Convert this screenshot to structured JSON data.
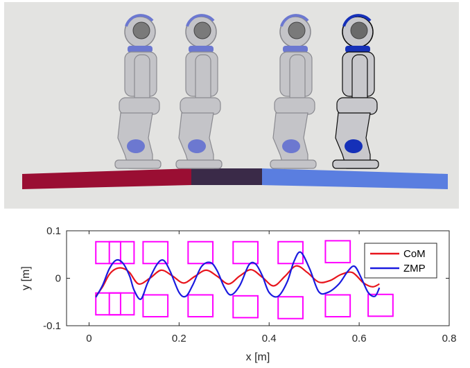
{
  "colors": {
    "com": "#e8141c",
    "zmp": "#1a1adf",
    "footprints": "#ff00ff",
    "scene_background": "#e3e3e1",
    "floor_segments": [
      "#9a0e33",
      "#3a2a48",
      "#5a7ee0"
    ],
    "robot_body": "#c4c4c8",
    "robot_accent": "#6c78d0",
    "robot_highlight_accent": "#1530b8"
  },
  "scene": {
    "icon": "humanoid-robot-icon",
    "robot_count": 4
  },
  "chart_data": {
    "type": "line",
    "xlabel": "x [m]",
    "ylabel": "y [m]",
    "xlim": [
      -0.05,
      0.8
    ],
    "ylim": [
      -0.1,
      0.1
    ],
    "xticks": [
      0,
      0.2,
      0.4,
      0.6,
      0.8
    ],
    "xtick_labels": [
      "0",
      "0.2",
      "0.4",
      "0.6",
      "0.8"
    ],
    "yticks": [
      -0.1,
      0,
      0.1
    ],
    "ytick_labels": [
      "-0.1",
      "0",
      "0.1"
    ],
    "grid": false,
    "legend_position": "top-right",
    "series": [
      {
        "name": "CoM",
        "x": [
          0.015,
          0.03,
          0.045,
          0.06,
          0.075,
          0.09,
          0.11,
          0.135,
          0.16,
          0.185,
          0.21,
          0.235,
          0.26,
          0.285,
          0.31,
          0.335,
          0.36,
          0.385,
          0.41,
          0.435,
          0.46,
          0.485,
          0.51,
          0.535,
          0.56,
          0.585,
          0.61,
          0.63,
          0.645
        ],
        "y": [
          -0.038,
          -0.018,
          0.008,
          0.02,
          0.021,
          0.012,
          -0.012,
          0.0,
          0.017,
          0.005,
          -0.01,
          0.004,
          0.017,
          0.004,
          -0.012,
          0.005,
          0.018,
          0.002,
          -0.016,
          0.004,
          0.026,
          0.012,
          -0.008,
          -0.005,
          0.008,
          0.012,
          -0.01,
          -0.018,
          -0.012
        ]
      },
      {
        "name": "ZMP",
        "x": [
          0.015,
          0.03,
          0.045,
          0.06,
          0.075,
          0.09,
          0.1,
          0.115,
          0.13,
          0.15,
          0.165,
          0.18,
          0.2,
          0.215,
          0.23,
          0.25,
          0.27,
          0.285,
          0.3,
          0.315,
          0.335,
          0.355,
          0.37,
          0.385,
          0.4,
          0.42,
          0.44,
          0.455,
          0.47,
          0.49,
          0.51,
          0.53,
          0.555,
          0.575,
          0.59,
          0.605,
          0.62,
          0.635,
          0.645
        ],
        "y": [
          -0.04,
          -0.015,
          0.02,
          0.038,
          0.032,
          0.005,
          -0.025,
          -0.044,
          -0.01,
          0.028,
          0.038,
          0.015,
          -0.03,
          -0.038,
          -0.015,
          0.025,
          0.033,
          0.015,
          -0.018,
          -0.035,
          -0.015,
          0.028,
          0.03,
          0.005,
          -0.03,
          -0.038,
          -0.008,
          0.035,
          0.055,
          0.02,
          -0.028,
          -0.03,
          -0.012,
          0.015,
          0.025,
          0.0,
          -0.03,
          -0.038,
          -0.02
        ]
      }
    ],
    "footprints": [
      {
        "x": 0.015,
        "y": 0.054
      },
      {
        "x": 0.045,
        "y": 0.054
      },
      {
        "x": 0.12,
        "y": 0.054
      },
      {
        "x": 0.22,
        "y": 0.054
      },
      {
        "x": 0.32,
        "y": 0.054
      },
      {
        "x": 0.42,
        "y": 0.054
      },
      {
        "x": 0.525,
        "y": 0.056
      },
      {
        "x": 0.015,
        "y": -0.054
      },
      {
        "x": 0.045,
        "y": -0.054
      },
      {
        "x": 0.12,
        "y": -0.058
      },
      {
        "x": 0.22,
        "y": -0.058
      },
      {
        "x": 0.32,
        "y": -0.06
      },
      {
        "x": 0.42,
        "y": -0.062
      },
      {
        "x": 0.525,
        "y": -0.058
      },
      {
        "x": 0.62,
        "y": -0.057
      }
    ],
    "footprint_size": {
      "length": 0.055,
      "width": 0.046
    }
  }
}
